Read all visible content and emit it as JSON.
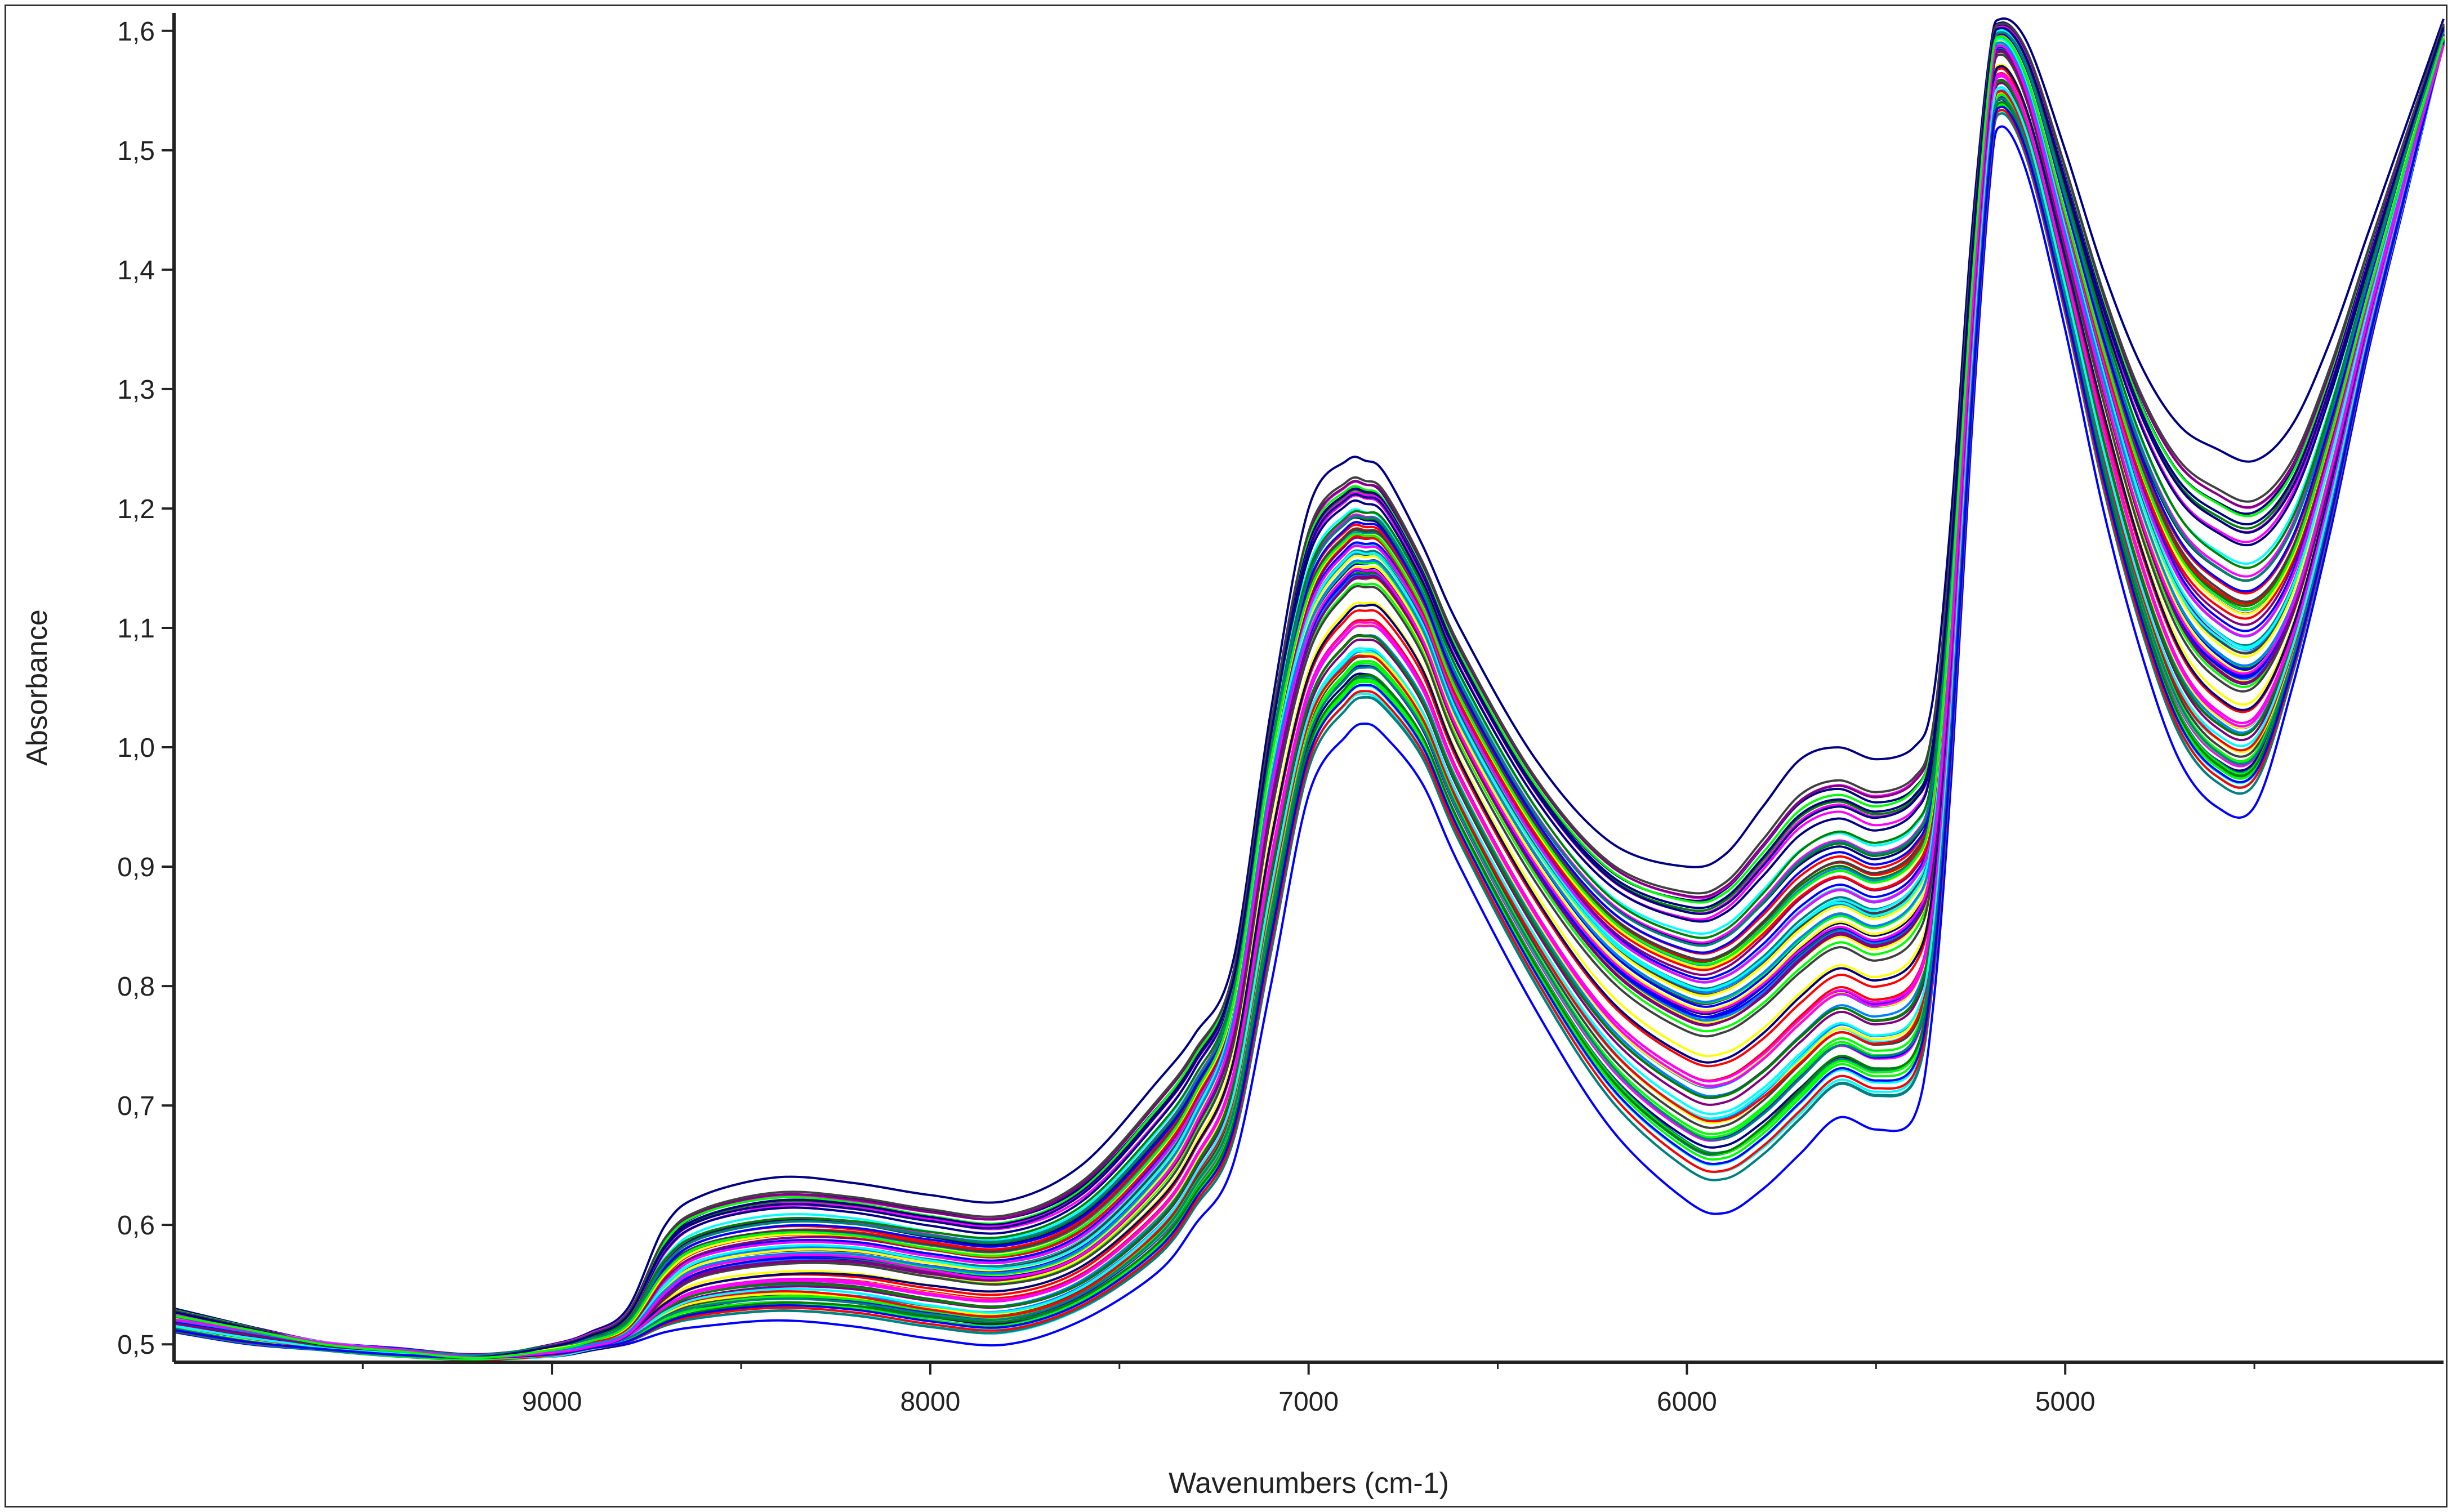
{
  "chart_data": {
    "type": "line",
    "title": "",
    "xlabel": "Wavenumbers (cm-1)",
    "ylabel": "Absorbance",
    "x_reversed": true,
    "xlim": [
      9999,
      4000
    ],
    "ylim": [
      0.485,
      1.615
    ],
    "xticks": [
      9000,
      8000,
      7000,
      6000,
      5000
    ],
    "xtick_labels": [
      "9000",
      "8000",
      "7000",
      "6000",
      "5000"
    ],
    "yticks": [
      0.5,
      0.6,
      0.7,
      0.8,
      0.9,
      1.0,
      1.1,
      1.2,
      1.3,
      1.4,
      1.5,
      1.6
    ],
    "ytick_labels": [
      "0,5",
      "0,6",
      "0,7",
      "0,8",
      "0,9",
      "1,0",
      "1,1",
      "1,2",
      "1,3",
      "1,4",
      "1,5",
      "1,6"
    ],
    "grid": false,
    "legend": "none",
    "series_count": 100,
    "series_colors": [
      "#000080",
      "#0000ff",
      "#ff00ff",
      "#00ff00",
      "#008000",
      "#00ffff",
      "#ff0000",
      "#800080",
      "#404040",
      "#ffff00",
      "#008080",
      "#0080ff"
    ],
    "representative_x": [
      9999,
      9800,
      9600,
      9400,
      9200,
      9000,
      8900,
      8800,
      8700,
      8600,
      8400,
      8200,
      8000,
      7800,
      7600,
      7400,
      7300,
      7200,
      7100,
      7000,
      6900,
      6850,
      6800,
      6700,
      6600,
      6400,
      6200,
      6000,
      5900,
      5800,
      5700,
      5600,
      5500,
      5400,
      5350,
      5300,
      5250,
      5200,
      5170,
      5100,
      5000,
      4900,
      4800,
      4700,
      4600,
      4500,
      4400,
      4300,
      4200,
      4100,
      4000
    ],
    "series": [
      {
        "values": [
          0.52,
          0.51,
          0.5,
          0.495,
          0.49,
          0.495,
          0.5,
          0.51,
          0.545,
          0.565,
          0.575,
          0.575,
          0.565,
          0.56,
          0.58,
          0.64,
          0.69,
          0.77,
          0.97,
          1.1,
          1.15,
          1.155,
          1.15,
          1.1,
          1.02,
          0.91,
          0.83,
          0.79,
          0.79,
          0.81,
          0.84,
          0.86,
          0.85,
          0.87,
          0.92,
          1.1,
          1.35,
          1.55,
          1.59,
          1.55,
          1.43,
          1.31,
          1.2,
          1.12,
          1.08,
          1.07,
          1.12,
          1.23,
          1.36,
          1.48,
          1.59
        ]
      },
      {
        "values": [
          0.53,
          0.515,
          0.5,
          0.495,
          0.49,
          0.5,
          0.51,
          0.53,
          0.6,
          0.625,
          0.64,
          0.635,
          0.625,
          0.62,
          0.65,
          0.72,
          0.76,
          0.82,
          1.03,
          1.2,
          1.24,
          1.24,
          1.23,
          1.17,
          1.1,
          0.99,
          0.92,
          0.9,
          0.91,
          0.95,
          0.99,
          1.0,
          0.99,
          1.0,
          1.04,
          1.2,
          1.42,
          1.58,
          1.61,
          1.59,
          1.5,
          1.4,
          1.32,
          1.27,
          1.25,
          1.24,
          1.27,
          1.34,
          1.43,
          1.52,
          1.61
        ]
      },
      {
        "values": [
          0.51,
          0.5,
          0.495,
          0.49,
          0.488,
          0.49,
          0.495,
          0.5,
          0.51,
          0.515,
          0.52,
          0.515,
          0.505,
          0.5,
          0.52,
          0.56,
          0.6,
          0.65,
          0.8,
          0.96,
          1.01,
          1.02,
          1.01,
          0.97,
          0.9,
          0.78,
          0.68,
          0.62,
          0.61,
          0.63,
          0.66,
          0.69,
          0.68,
          0.69,
          0.78,
          0.98,
          1.25,
          1.47,
          1.52,
          1.48,
          1.35,
          1.2,
          1.08,
          0.99,
          0.95,
          0.95,
          1.05,
          1.18,
          1.33,
          1.46,
          1.59
        ]
      }
    ]
  }
}
